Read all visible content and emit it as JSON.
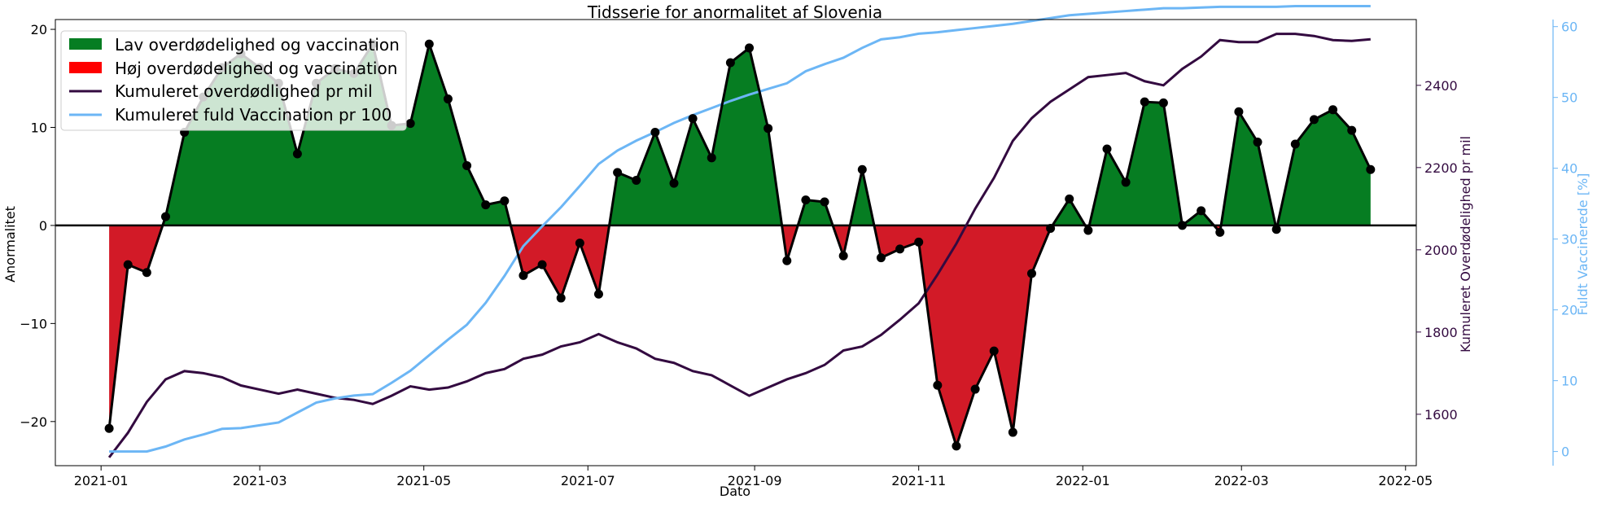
{
  "chart_data": {
    "type": "area",
    "title": "Tidsserie for anormalitet af Slovenia",
    "xlabel": "Dato",
    "ylabel": "Anormalitet",
    "ylabel_right": "Kumuleret Overdødelighed pr mil",
    "ylabel_right2": "Fuldt Vaccinerede [%]",
    "xlim": [
      "2020-12-15",
      "2022-05-05"
    ],
    "ylim": [
      -24.5,
      21
    ],
    "ylim_right": [
      1475,
      2560
    ],
    "ylim_right2": [
      -2,
      61
    ],
    "x_ticks": [
      "2021-01-01",
      "2021-03-01",
      "2021-05-01",
      "2021-07-01",
      "2021-09-01",
      "2021-11-01",
      "2022-01-01",
      "2022-03-01",
      "2022-05-01"
    ],
    "x_tick_labels": [
      "2021-01",
      "2021-03",
      "2021-05",
      "2021-07",
      "2021-09",
      "2021-11",
      "2022-01",
      "2022-03",
      "2022-05"
    ],
    "y_ticks": [
      -20,
      -10,
      0,
      10,
      20
    ],
    "y_ticks_right": [
      1600,
      1800,
      2000,
      2200,
      2400
    ],
    "y_ticks_right2": [
      0,
      10,
      20,
      30,
      40,
      50,
      60
    ],
    "legend": [
      {
        "label": "Lav overdødelighed og vaccination",
        "kind": "patch",
        "color": "#067d22"
      },
      {
        "label": "Høj overdødelighed og vaccination",
        "kind": "patch",
        "color": "#ff0000"
      },
      {
        "label": "Kumuleret overdødlighed pr mil",
        "kind": "line",
        "color": "#330a40"
      },
      {
        "label": "Kumuleret fuld Vaccination pr 100",
        "kind": "line",
        "color": "#6cb6f5"
      }
    ],
    "legend_position": "upper-left",
    "colors": {
      "positive_fill": "#067d22",
      "negative_fill": "#d21a27",
      "anomaly_line": "#000000",
      "excess_line": "#330a40",
      "vaccination_line": "#6cb6f5"
    },
    "x": [
      "2021-01-04",
      "2021-01-11",
      "2021-01-18",
      "2021-01-25",
      "2021-02-01",
      "2021-02-08",
      "2021-02-15",
      "2021-02-22",
      "2021-03-01",
      "2021-03-08",
      "2021-03-15",
      "2021-03-22",
      "2021-03-29",
      "2021-04-05",
      "2021-04-12",
      "2021-04-19",
      "2021-04-26",
      "2021-05-03",
      "2021-05-10",
      "2021-05-17",
      "2021-05-24",
      "2021-05-31",
      "2021-06-07",
      "2021-06-14",
      "2021-06-21",
      "2021-06-28",
      "2021-07-05",
      "2021-07-12",
      "2021-07-19",
      "2021-07-26",
      "2021-08-02",
      "2021-08-09",
      "2021-08-16",
      "2021-08-23",
      "2021-08-30",
      "2021-09-06",
      "2021-09-13",
      "2021-09-20",
      "2021-09-27",
      "2021-10-04",
      "2021-10-11",
      "2021-10-18",
      "2021-10-25",
      "2021-11-01",
      "2021-11-08",
      "2021-11-15",
      "2021-11-22",
      "2021-11-29",
      "2021-12-06",
      "2021-12-13",
      "2021-12-20",
      "2021-12-27",
      "2022-01-03",
      "2022-01-10",
      "2022-01-17",
      "2022-01-24",
      "2022-01-31",
      "2022-02-07",
      "2022-02-14",
      "2022-02-21",
      "2022-02-28",
      "2022-03-07",
      "2022-03-14",
      "2022-03-21",
      "2022-03-28",
      "2022-04-04",
      "2022-04-11",
      "2022-04-18"
    ],
    "series": [
      {
        "name": "Anormalitet",
        "axis": "left",
        "markers": true,
        "values": [
          -20.7,
          -4,
          -4.8,
          0.9,
          9.5,
          13.1,
          16.1,
          17.5,
          16.1,
          14.5,
          7.3,
          14.5,
          16,
          15.5,
          18.5,
          10.2,
          10.4,
          18.5,
          12.9,
          6.1,
          2.1,
          2.5,
          -5.1,
          -4,
          -7.4,
          -1.8,
          -7,
          5.4,
          4.6,
          9.5,
          4.3,
          10.9,
          6.9,
          16.6,
          18.1,
          9.9,
          -3.6,
          2.6,
          2.4,
          -3.1,
          5.7,
          -3.3,
          -2.4,
          -1.7,
          -16.3,
          -22.5,
          -16.7,
          -12.8,
          -21.1,
          -4.9,
          -0.3,
          2.7,
          -0.5,
          7.8,
          4.4,
          12.6,
          12.5,
          0,
          1.5,
          -0.7,
          11.6,
          8.5,
          -0.4,
          8.3,
          10.8,
          11.8,
          9.7,
          5.7
        ]
      },
      {
        "name": "Kumuleret overdødlighed pr mil",
        "axis": "right",
        "values": [
          1495,
          1555,
          1630,
          1685,
          1705,
          1700,
          1690,
          1670,
          1660,
          1650,
          1660,
          1650,
          1640,
          1635,
          1625,
          1645,
          1668,
          1660,
          1665,
          1680,
          1700,
          1710,
          1735,
          1745,
          1765,
          1775,
          1795,
          1775,
          1760,
          1735,
          1725,
          1705,
          1695,
          1670,
          1645,
          1665,
          1685,
          1700,
          1720,
          1755,
          1765,
          1793,
          1830,
          1870,
          1940,
          2015,
          2100,
          2175,
          2265,
          2320,
          2360,
          2390,
          2420,
          2425,
          2430,
          2410,
          2400,
          2440,
          2470,
          2510,
          2505,
          2505,
          2525,
          2525,
          2520,
          2510,
          2508,
          2512
        ]
      },
      {
        "name": "Kumuleret fuld Vaccination pr 100",
        "axis": "right2",
        "values": [
          0,
          0,
          0,
          0.7,
          1.7,
          2.4,
          3.2,
          3.3,
          3.7,
          4.1,
          5.5,
          6.9,
          7.5,
          7.9,
          8.1,
          9.7,
          11.4,
          13.6,
          15.8,
          17.9,
          21,
          24.8,
          29,
          31.8,
          34.5,
          37.5,
          40.6,
          42.5,
          43.9,
          45.1,
          46.4,
          47.5,
          48.5,
          49.5,
          50.4,
          51.2,
          52,
          53.7,
          54.7,
          55.6,
          57,
          58.2,
          58.5,
          59,
          59.2,
          59.5,
          59.8,
          60.1,
          60.4,
          60.8,
          61.2,
          61.6,
          61.8,
          62,
          62.2,
          62.4,
          62.6,
          62.6,
          62.7,
          62.8,
          62.8,
          62.8,
          62.8,
          62.9,
          62.9,
          62.9,
          62.9,
          62.9
        ]
      }
    ]
  }
}
